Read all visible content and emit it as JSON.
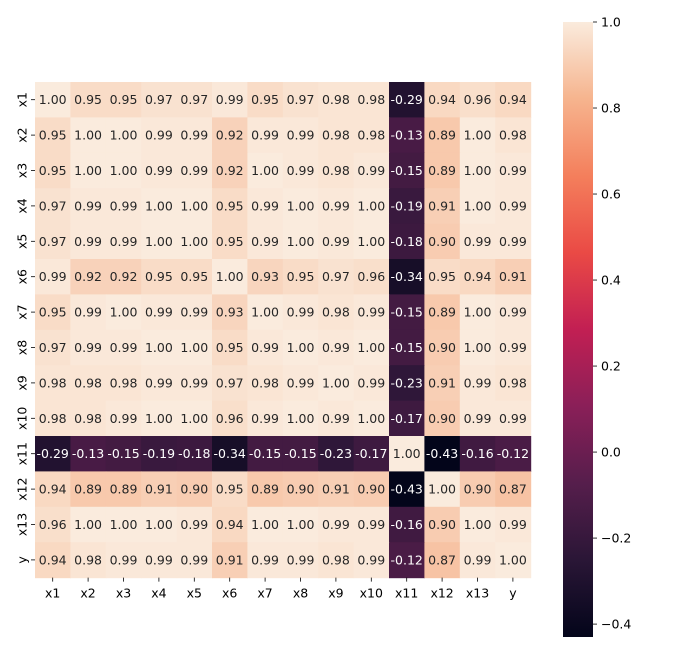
{
  "chart_data": {
    "type": "heatmap",
    "title": "",
    "xlabel": "",
    "ylabel": "",
    "labels": [
      "x1",
      "x2",
      "x3",
      "x4",
      "x5",
      "x6",
      "x7",
      "x8",
      "x9",
      "x10",
      "x11",
      "x12",
      "x13",
      "y"
    ],
    "matrix": [
      [
        1.0,
        0.95,
        0.95,
        0.97,
        0.97,
        0.99,
        0.95,
        0.97,
        0.98,
        0.98,
        -0.29,
        0.94,
        0.96,
        0.94
      ],
      [
        0.95,
        1.0,
        1.0,
        0.99,
        0.99,
        0.92,
        0.99,
        0.99,
        0.98,
        0.98,
        -0.13,
        0.89,
        1.0,
        0.98
      ],
      [
        0.95,
        1.0,
        1.0,
        0.99,
        0.99,
        0.92,
        1.0,
        0.99,
        0.98,
        0.99,
        -0.15,
        0.89,
        1.0,
        0.99
      ],
      [
        0.97,
        0.99,
        0.99,
        1.0,
        1.0,
        0.95,
        0.99,
        1.0,
        0.99,
        1.0,
        -0.19,
        0.91,
        1.0,
        0.99
      ],
      [
        0.97,
        0.99,
        0.99,
        1.0,
        1.0,
        0.95,
        0.99,
        1.0,
        0.99,
        1.0,
        -0.18,
        0.9,
        0.99,
        0.99
      ],
      [
        0.99,
        0.92,
        0.92,
        0.95,
        0.95,
        1.0,
        0.93,
        0.95,
        0.97,
        0.96,
        -0.34,
        0.95,
        0.94,
        0.91
      ],
      [
        0.95,
        0.99,
        1.0,
        0.99,
        0.99,
        0.93,
        1.0,
        0.99,
        0.98,
        0.99,
        -0.15,
        0.89,
        1.0,
        0.99
      ],
      [
        0.97,
        0.99,
        0.99,
        1.0,
        1.0,
        0.95,
        0.99,
        1.0,
        0.99,
        1.0,
        -0.15,
        0.9,
        1.0,
        0.99
      ],
      [
        0.98,
        0.98,
        0.98,
        0.99,
        0.99,
        0.97,
        0.98,
        0.99,
        1.0,
        0.99,
        -0.23,
        0.91,
        0.99,
        0.98
      ],
      [
        0.98,
        0.98,
        0.99,
        1.0,
        1.0,
        0.96,
        0.99,
        1.0,
        0.99,
        1.0,
        -0.17,
        0.9,
        0.99,
        0.99
      ],
      [
        -0.29,
        -0.13,
        -0.15,
        -0.19,
        -0.18,
        -0.34,
        -0.15,
        -0.15,
        -0.23,
        -0.17,
        1.0,
        -0.43,
        -0.16,
        -0.12
      ],
      [
        0.94,
        0.89,
        0.89,
        0.91,
        0.9,
        0.95,
        0.89,
        0.9,
        0.91,
        0.9,
        -0.43,
        1.0,
        0.9,
        0.87
      ],
      [
        0.96,
        1.0,
        1.0,
        1.0,
        0.99,
        0.94,
        1.0,
        1.0,
        0.99,
        0.99,
        -0.16,
        0.9,
        1.0,
        0.99
      ],
      [
        0.94,
        0.98,
        0.99,
        0.99,
        0.99,
        0.91,
        0.99,
        0.99,
        0.98,
        0.99,
        -0.12,
        0.87,
        0.99,
        1.0
      ]
    ],
    "value_format": "2 decimals",
    "colormap": "rocket",
    "vmin": -0.43,
    "vmax": 1.0,
    "colorbar_ticks": [
      "1.0",
      "0.8",
      "0.6",
      "0.4",
      "0.2",
      "0.0",
      "−0.2",
      "−0.4"
    ],
    "colorbar_tick_values": [
      1.0,
      0.8,
      0.6,
      0.4,
      0.2,
      0.0,
      -0.2,
      -0.4
    ],
    "colormap_stops": [
      {
        "t": 0.0,
        "color": "#03051a"
      },
      {
        "t": 0.125,
        "color": "#2a1636"
      },
      {
        "t": 0.25,
        "color": "#561e4c"
      },
      {
        "t": 0.375,
        "color": "#8a1f58"
      },
      {
        "t": 0.5,
        "color": "#c21f53"
      },
      {
        "t": 0.625,
        "color": "#ea4a45"
      },
      {
        "t": 0.75,
        "color": "#f47f5c"
      },
      {
        "t": 0.875,
        "color": "#f6b48e"
      },
      {
        "t": 1.0,
        "color": "#faebdd"
      }
    ]
  }
}
